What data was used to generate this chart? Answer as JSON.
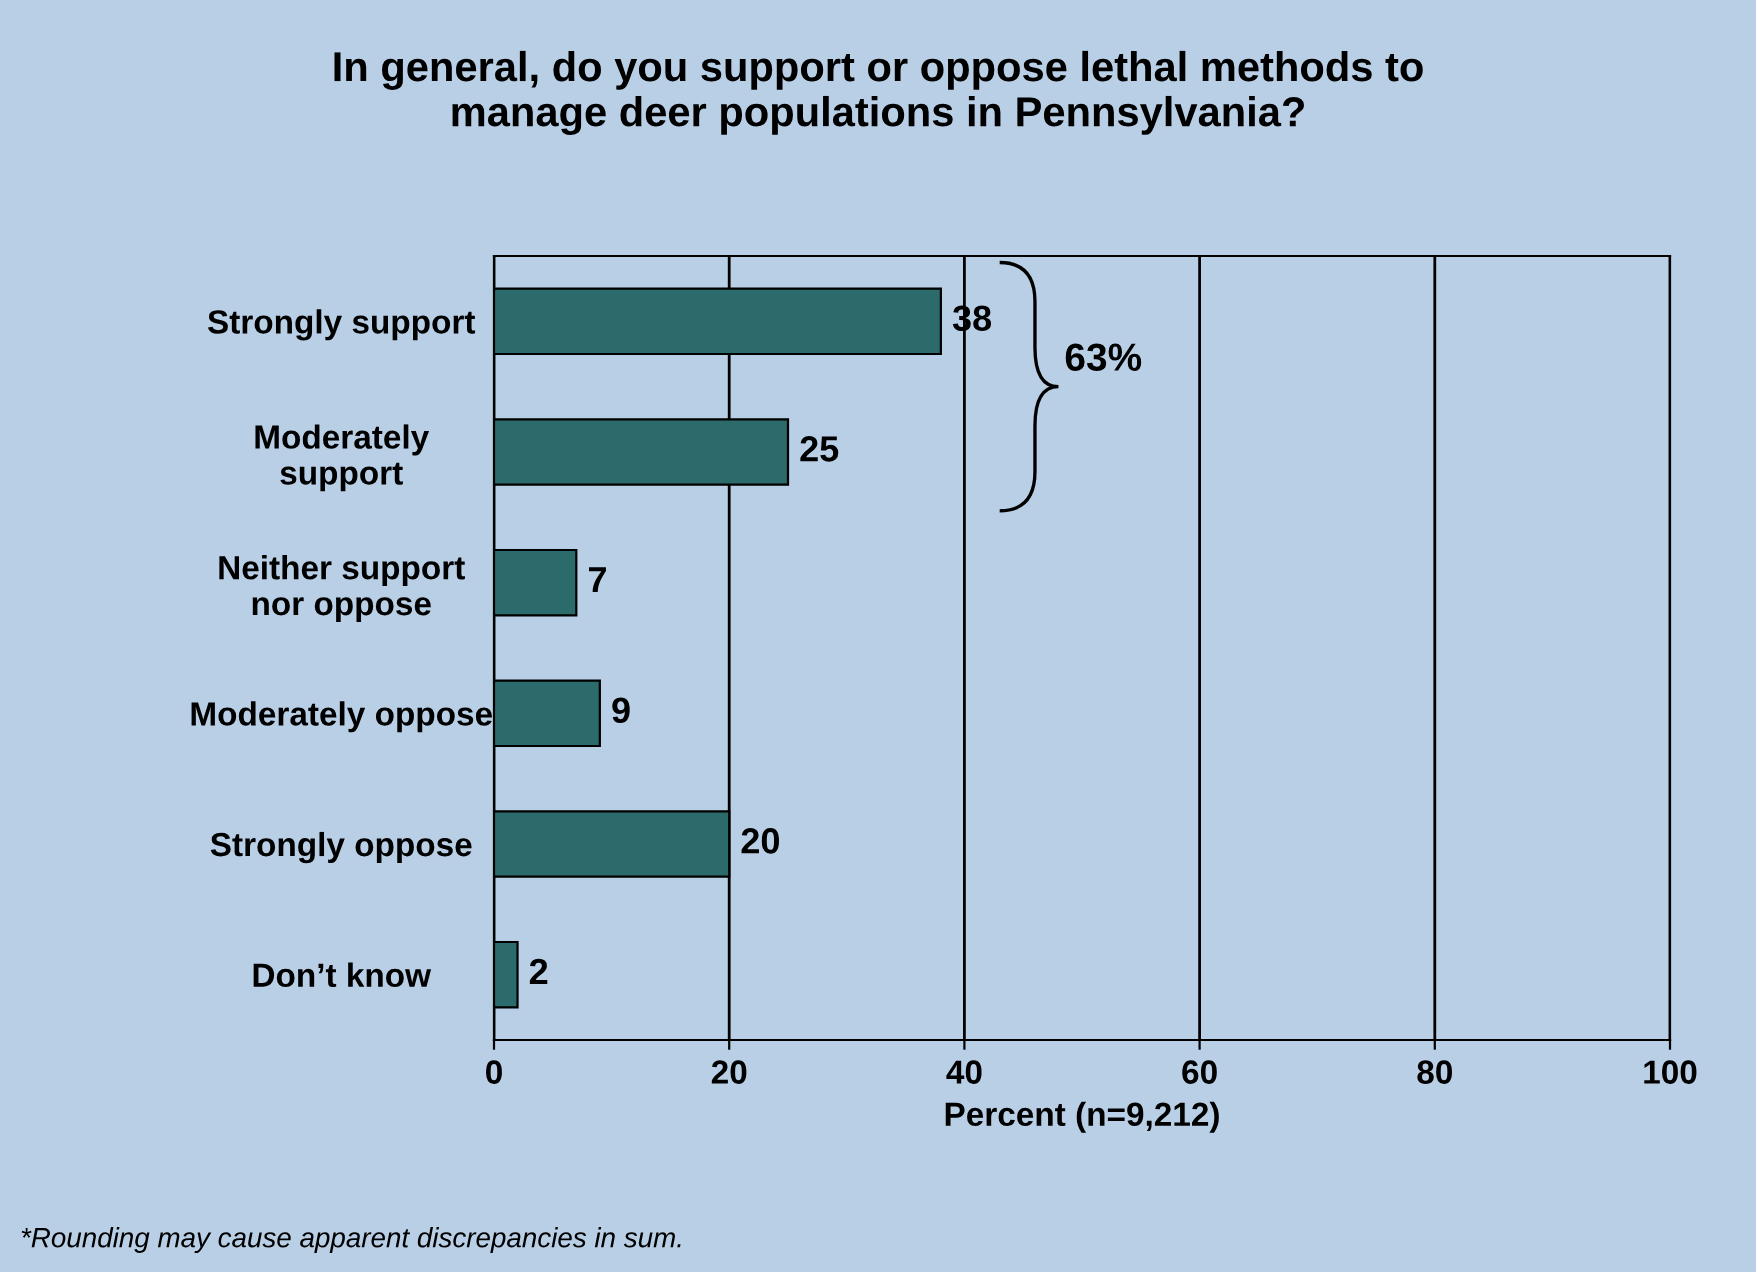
{
  "chart_data": {
    "type": "bar",
    "orientation": "horizontal",
    "title": "In general, do you support or oppose lethal methods to\nmanage deer populations in Pennsylvania?",
    "categories": [
      "Strongly support",
      "Moderately\nsupport",
      "Neither support\nnor oppose",
      "Moderately oppose",
      "Strongly oppose",
      "Don’t know"
    ],
    "values": [
      38,
      25,
      7,
      9,
      20,
      2
    ],
    "color": "#2b6b6b",
    "xlim": [
      0,
      100
    ],
    "xticks": [
      0,
      20,
      40,
      60,
      80,
      100
    ],
    "xlabel": "Percent (n=9,212)",
    "grid": "x",
    "data_labels": true,
    "annotations": [
      "63%",
      "*Rounding may cause apparent discrepancies in sum."
    ]
  }
}
